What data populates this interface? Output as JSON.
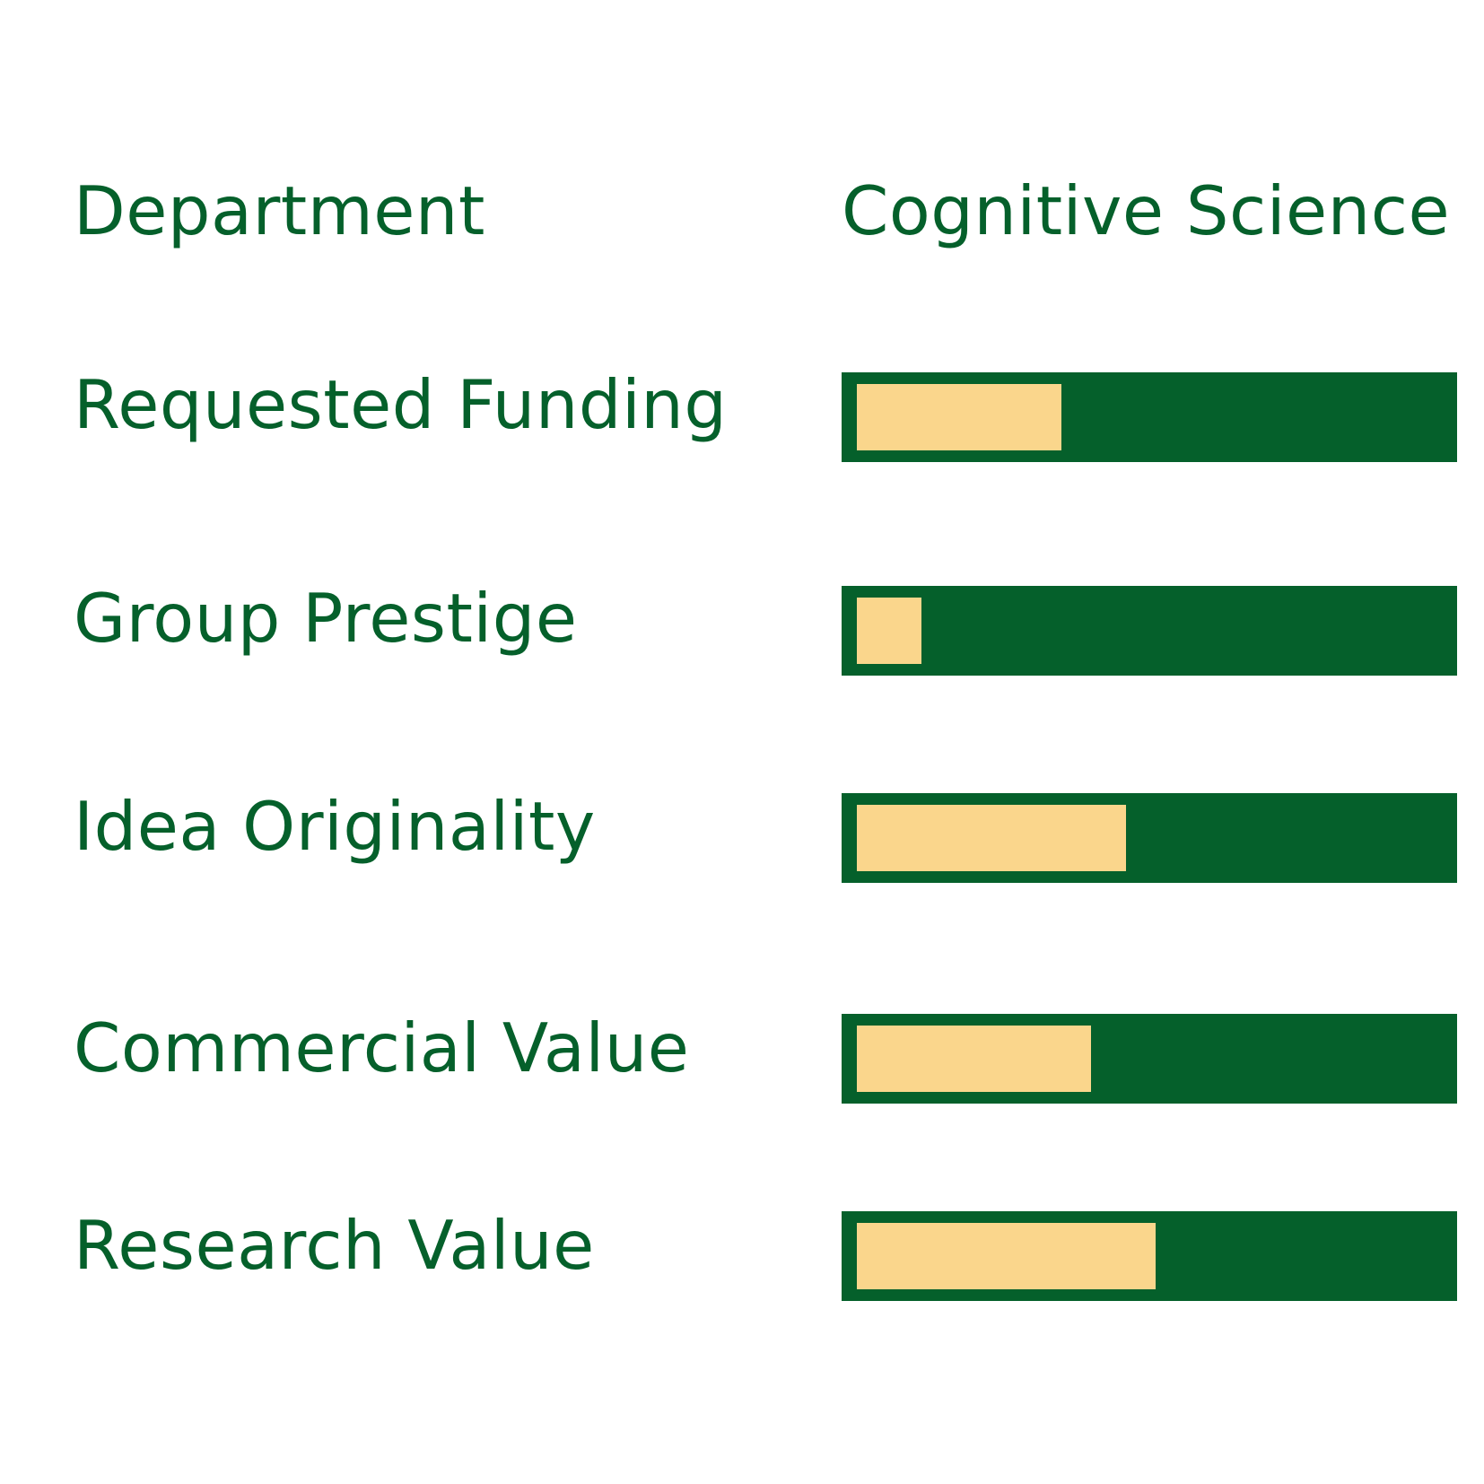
{
  "header": {
    "label": "Department",
    "value": "Cognitive Science"
  },
  "colors": {
    "track": "#05602b",
    "fill": "#fad68c",
    "text": "#05602b"
  },
  "chart_data": {
    "type": "bar",
    "orientation": "horizontal",
    "title": "",
    "xlabel": "",
    "ylabel": "",
    "xlim": [
      0,
      1
    ],
    "grid": false,
    "categories": [
      "Requested Funding",
      "Group Prestige",
      "Idea Originality",
      "Commercial Value",
      "Research Value"
    ],
    "series": [
      {
        "values": [
          0.35,
          0.11,
          0.46,
          0.4,
          0.51
        ]
      }
    ]
  }
}
